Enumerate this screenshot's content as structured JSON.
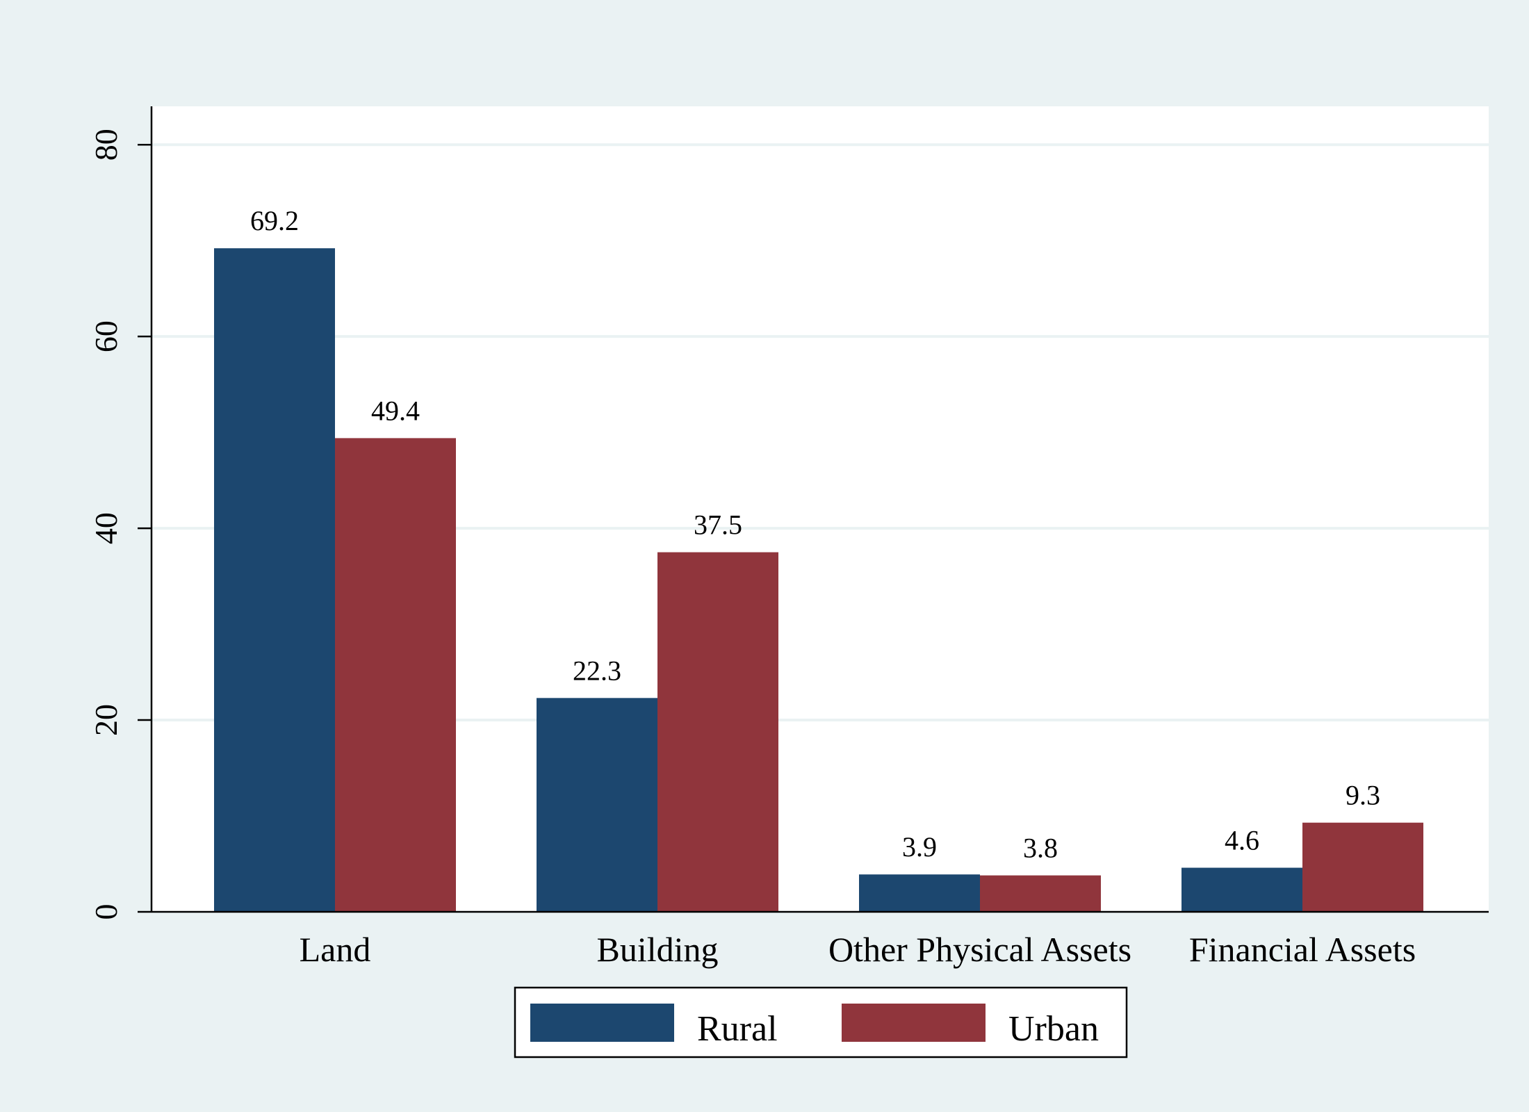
{
  "chart_data": {
    "type": "bar",
    "categories": [
      "Land",
      "Building",
      "Other Physical Assets",
      "Financial Assets"
    ],
    "series": [
      {
        "name": "Rural",
        "values": [
          69.2,
          22.3,
          3.9,
          4.6
        ],
        "color": "#1c476f"
      },
      {
        "name": "Urban",
        "values": [
          49.4,
          37.5,
          3.8,
          9.3
        ],
        "color": "#90353c"
      }
    ],
    "value_labels": [
      [
        "69.2",
        "22.3",
        "3.9",
        "4.6"
      ],
      [
        "49.4",
        "37.5",
        "3.8",
        "9.3"
      ]
    ],
    "title": "",
    "xlabel": "",
    "ylabel": "",
    "ylim": [
      0,
      84
    ],
    "yticks": [
      0,
      20,
      40,
      60,
      80
    ],
    "grid": true,
    "legend_position": "bottom-center",
    "colors": {
      "background": "#eaf2f3",
      "plot_background": "#ffffff",
      "gridline": "#eaf2f3"
    }
  }
}
